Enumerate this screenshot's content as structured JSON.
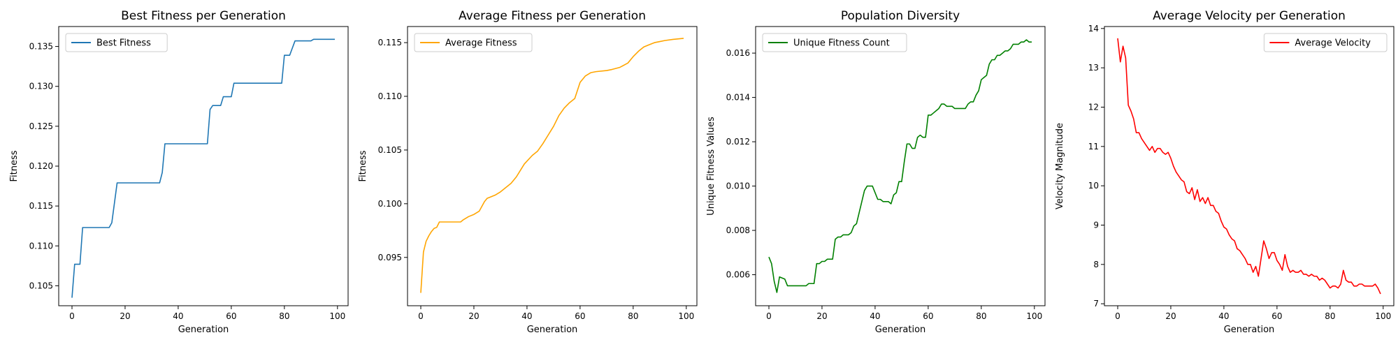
{
  "chart_data": [
    {
      "type": "line",
      "title": "Best Fitness per Generation",
      "xlabel": "Generation",
      "ylabel": "Fitness",
      "xlim": [
        -5,
        104
      ],
      "ylim": [
        0.1025,
        0.1375
      ],
      "xticks": [
        0,
        20,
        40,
        60,
        80,
        100
      ],
      "yticks": [
        0.105,
        0.11,
        0.115,
        0.12,
        0.125,
        0.13,
        0.135
      ],
      "grid": false,
      "legend": "upper-left",
      "series": [
        {
          "name": "Best Fitness",
          "color": "#1f77b4",
          "x": [
            0,
            1,
            3,
            4,
            14,
            15,
            17,
            33,
            34,
            35,
            51,
            52,
            53,
            56,
            57,
            60,
            61,
            79,
            80,
            82,
            84,
            90,
            91,
            99
          ],
          "y": [
            0.1035,
            0.1077,
            0.1077,
            0.1123,
            0.1123,
            0.1129,
            0.1179,
            0.1179,
            0.1192,
            0.1228,
            0.1228,
            0.1271,
            0.1276,
            0.1276,
            0.1287,
            0.1287,
            0.1304,
            0.1304,
            0.1339,
            0.1339,
            0.1357,
            0.1357,
            0.1359,
            0.1359
          ]
        }
      ]
    },
    {
      "type": "line",
      "title": "Average Fitness per Generation",
      "xlabel": "Generation",
      "ylabel": "Fitness",
      "xlim": [
        -5,
        104
      ],
      "ylim": [
        0.0905,
        0.1165
      ],
      "xticks": [
        0,
        20,
        40,
        60,
        80,
        100
      ],
      "yticks": [
        0.095,
        0.1,
        0.105,
        0.11,
        0.115
      ],
      "grid": false,
      "legend": "upper-left",
      "series": [
        {
          "name": "Average Fitness",
          "color": "#ffa500",
          "x": [
            0,
            1,
            2,
            3,
            4,
            5,
            6,
            7,
            8,
            15,
            16,
            18,
            20,
            22,
            24,
            25,
            26,
            28,
            30,
            32,
            34,
            36,
            38,
            39,
            42,
            44,
            46,
            48,
            50,
            52,
            54,
            56,
            58,
            60,
            62,
            64,
            66,
            70,
            72,
            75,
            78,
            80,
            82,
            84,
            86,
            88,
            90,
            92,
            95,
            99
          ],
          "y": [
            0.0917,
            0.0955,
            0.0965,
            0.097,
            0.0974,
            0.0977,
            0.0978,
            0.0983,
            0.0983,
            0.0983,
            0.0985,
            0.0988,
            0.099,
            0.0993,
            0.1002,
            0.1005,
            0.1006,
            0.1008,
            0.1011,
            0.1015,
            0.1019,
            0.1025,
            0.1033,
            0.1037,
            0.1045,
            0.1049,
            0.1056,
            0.1064,
            0.1072,
            0.1082,
            0.1089,
            0.1094,
            0.1098,
            0.1113,
            0.1119,
            0.1122,
            0.1123,
            0.1124,
            0.1125,
            0.1127,
            0.1131,
            0.1137,
            0.1142,
            0.1146,
            0.1148,
            0.115,
            0.1151,
            0.1152,
            0.1153,
            0.1154
          ]
        }
      ]
    },
    {
      "type": "line",
      "title": "Population Diversity",
      "xlabel": "Generation",
      "ylabel": "Unique Fitness Values",
      "xlim": [
        -5,
        104
      ],
      "ylim": [
        0.0046,
        0.0172
      ],
      "xticks": [
        0,
        20,
        40,
        60,
        80,
        100
      ],
      "yticks": [
        0.006,
        0.008,
        0.01,
        0.012,
        0.014,
        0.016
      ],
      "grid": false,
      "legend": "upper-left",
      "series": [
        {
          "name": "Unique Fitness Count",
          "color": "#008000",
          "x": [
            0,
            1,
            2,
            3,
            4,
            6,
            7,
            8,
            14,
            15,
            17,
            18,
            19,
            20,
            21,
            22,
            23,
            24,
            25,
            26,
            27,
            28,
            29,
            30,
            31,
            32,
            33,
            34,
            35,
            36,
            37,
            38,
            39,
            40,
            41,
            42,
            43,
            44,
            45,
            46,
            47,
            48,
            49,
            50,
            51,
            52,
            53,
            54,
            55,
            56,
            57,
            58,
            59,
            60,
            61,
            62,
            63,
            64,
            65,
            66,
            67,
            68,
            69,
            70,
            71,
            72,
            73,
            74,
            75,
            76,
            77,
            78,
            79,
            80,
            81,
            82,
            83,
            84,
            85,
            86,
            87,
            88,
            89,
            90,
            91,
            92,
            93,
            94,
            95,
            96,
            97,
            98,
            99
          ],
          "y": [
            0.0068,
            0.0065,
            0.0057,
            0.0052,
            0.0059,
            0.0058,
            0.0055,
            0.0055,
            0.0055,
            0.0056,
            0.0056,
            0.0065,
            0.0065,
            0.0066,
            0.0066,
            0.0067,
            0.0067,
            0.0067,
            0.0076,
            0.0077,
            0.0077,
            0.0078,
            0.0078,
            0.0078,
            0.0079,
            0.0082,
            0.0083,
            0.0088,
            0.0093,
            0.0098,
            0.01,
            0.01,
            0.01,
            0.0097,
            0.0094,
            0.0094,
            0.0093,
            0.0093,
            0.0093,
            0.0092,
            0.0096,
            0.0097,
            0.0102,
            0.0102,
            0.0111,
            0.0119,
            0.0119,
            0.0117,
            0.0117,
            0.0122,
            0.0123,
            0.0122,
            0.0122,
            0.0132,
            0.0132,
            0.0133,
            0.0134,
            0.0135,
            0.0137,
            0.0137,
            0.0136,
            0.0136,
            0.0136,
            0.0135,
            0.0135,
            0.0135,
            0.0135,
            0.0135,
            0.0137,
            0.0138,
            0.0138,
            0.0141,
            0.0143,
            0.0148,
            0.0149,
            0.015,
            0.0155,
            0.0157,
            0.0157,
            0.0159,
            0.0159,
            0.016,
            0.0161,
            0.0161,
            0.0162,
            0.0164,
            0.0164,
            0.0164,
            0.0165,
            0.0165,
            0.0166,
            0.0165,
            0.0165
          ]
        }
      ]
    },
    {
      "type": "line",
      "title": "Average Velocity per Generation",
      "xlabel": "Generation",
      "ylabel": "Velocity Magnitude",
      "xlim": [
        -5,
        104
      ],
      "ylim": [
        6.95,
        14.05
      ],
      "xticks": [
        0,
        20,
        40,
        60,
        80,
        100
      ],
      "yticks": [
        7,
        8,
        9,
        10,
        11,
        12,
        13,
        14
      ],
      "grid": false,
      "legend": "upper-right",
      "series": [
        {
          "name": "Average Velocity",
          "color": "#ff0000",
          "x": [
            0,
            1,
            2,
            3,
            4,
            5,
            6,
            7,
            8,
            9,
            10,
            11,
            12,
            13,
            14,
            15,
            16,
            17,
            18,
            19,
            20,
            21,
            22,
            23,
            24,
            25,
            26,
            27,
            28,
            29,
            30,
            31,
            32,
            33,
            34,
            35,
            36,
            37,
            38,
            39,
            40,
            41,
            42,
            43,
            44,
            45,
            46,
            47,
            48,
            49,
            50,
            51,
            52,
            53,
            54,
            55,
            56,
            57,
            58,
            59,
            60,
            61,
            62,
            63,
            64,
            65,
            66,
            67,
            68,
            69,
            70,
            71,
            72,
            73,
            74,
            75,
            76,
            77,
            78,
            79,
            80,
            81,
            82,
            83,
            84,
            85,
            86,
            87,
            88,
            89,
            90,
            91,
            92,
            93,
            94,
            95,
            96,
            97,
            98,
            99
          ],
          "y": [
            13.75,
            13.15,
            13.55,
            13.25,
            12.05,
            11.9,
            11.7,
            11.35,
            11.35,
            11.2,
            11.1,
            11,
            10.9,
            11.0,
            10.85,
            10.95,
            10.95,
            10.85,
            10.8,
            10.85,
            10.7,
            10.5,
            10.35,
            10.25,
            10.15,
            10.1,
            9.85,
            9.8,
            9.95,
            9.65,
            9.9,
            9.6,
            9.7,
            9.55,
            9.7,
            9.5,
            9.5,
            9.35,
            9.3,
            9.1,
            8.95,
            8.9,
            8.75,
            8.65,
            8.6,
            8.4,
            8.35,
            8.25,
            8.15,
            8.0,
            8.0,
            7.8,
            7.95,
            7.7,
            8.15,
            8.6,
            8.4,
            8.15,
            8.3,
            8.3,
            8.1,
            8.0,
            7.85,
            8.25,
            7.95,
            7.8,
            7.85,
            7.8,
            7.8,
            7.85,
            7.75,
            7.75,
            7.7,
            7.75,
            7.7,
            7.7,
            7.6,
            7.65,
            7.6,
            7.5,
            7.4,
            7.45,
            7.45,
            7.4,
            7.5,
            7.85,
            7.6,
            7.55,
            7.55,
            7.45,
            7.45,
            7.5,
            7.5,
            7.45,
            7.45,
            7.45,
            7.45,
            7.5,
            7.4,
            7.25
          ]
        }
      ]
    }
  ]
}
